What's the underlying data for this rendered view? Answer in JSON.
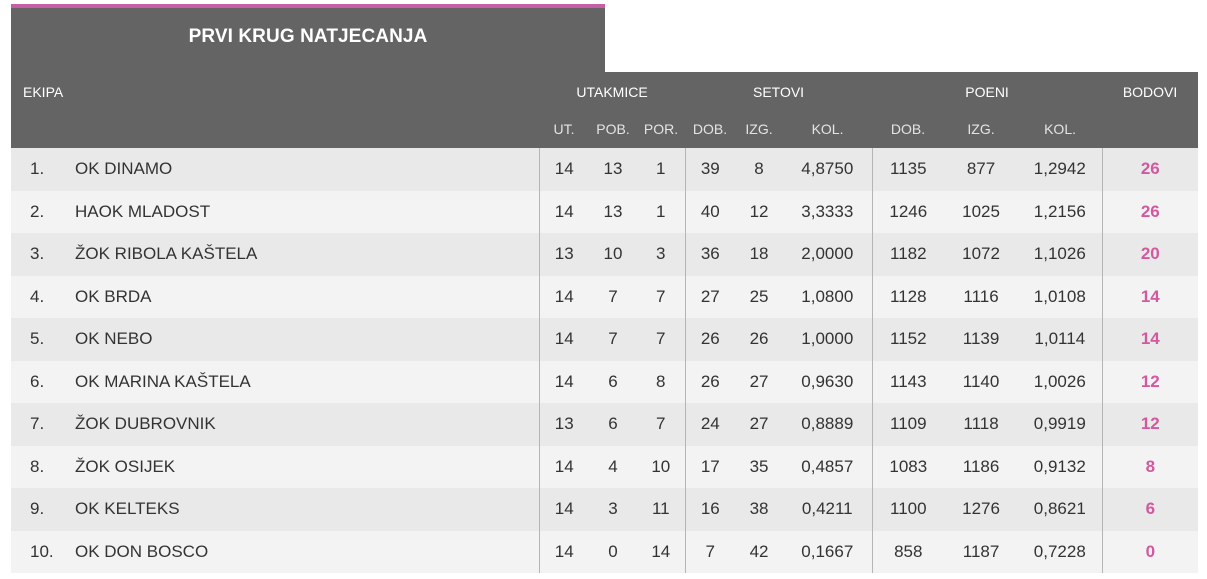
{
  "title": "PRVI KRUG NATJECANJA",
  "colors": {
    "header_bg": "#646464",
    "accent": "#c75fa6",
    "points": "#d2589f"
  },
  "header": {
    "ekipa": "EKIPA",
    "utakmice": "UTAKMICE",
    "setovi": "SETOVI",
    "poeni": "POENI",
    "bodovi": "BODOVI",
    "sub": {
      "ut": "UT.",
      "pob": "POB.",
      "por": "POR.",
      "set_dob": "DOB.",
      "set_izg": "IZG.",
      "set_kol": "KOL.",
      "poe_dob": "DOB.",
      "poe_izg": "IZG.",
      "poe_kol": "KOL."
    }
  },
  "rows": [
    {
      "rank": "1.",
      "team": "OK DINAMO",
      "ut": "14",
      "pob": "13",
      "por": "1",
      "set_dob": "39",
      "set_izg": "8",
      "set_kol": "4,8750",
      "poe_dob": "1135",
      "poe_izg": "877",
      "poe_kol": "1,2942",
      "bodovi": "26"
    },
    {
      "rank": "2.",
      "team": "HAOK MLADOST",
      "ut": "14",
      "pob": "13",
      "por": "1",
      "set_dob": "40",
      "set_izg": "12",
      "set_kol": "3,3333",
      "poe_dob": "1246",
      "poe_izg": "1025",
      "poe_kol": "1,2156",
      "bodovi": "26"
    },
    {
      "rank": "3.",
      "team": "ŽOK RIBOLA KAŠTELA",
      "ut": "13",
      "pob": "10",
      "por": "3",
      "set_dob": "36",
      "set_izg": "18",
      "set_kol": "2,0000",
      "poe_dob": "1182",
      "poe_izg": "1072",
      "poe_kol": "1,1026",
      "bodovi": "20"
    },
    {
      "rank": "4.",
      "team": "OK BRDA",
      "ut": "14",
      "pob": "7",
      "por": "7",
      "set_dob": "27",
      "set_izg": "25",
      "set_kol": "1,0800",
      "poe_dob": "1128",
      "poe_izg": "1116",
      "poe_kol": "1,0108",
      "bodovi": "14"
    },
    {
      "rank": "5.",
      "team": "OK NEBO",
      "ut": "14",
      "pob": "7",
      "por": "7",
      "set_dob": "26",
      "set_izg": "26",
      "set_kol": "1,0000",
      "poe_dob": "1152",
      "poe_izg": "1139",
      "poe_kol": "1,0114",
      "bodovi": "14"
    },
    {
      "rank": "6.",
      "team": "OK MARINA KAŠTELA",
      "ut": "14",
      "pob": "6",
      "por": "8",
      "set_dob": "26",
      "set_izg": "27",
      "set_kol": "0,9630",
      "poe_dob": "1143",
      "poe_izg": "1140",
      "poe_kol": "1,0026",
      "bodovi": "12"
    },
    {
      "rank": "7.",
      "team": "ŽOK DUBROVNIK",
      "ut": "13",
      "pob": "6",
      "por": "7",
      "set_dob": "24",
      "set_izg": "27",
      "set_kol": "0,8889",
      "poe_dob": "1109",
      "poe_izg": "1118",
      "poe_kol": "0,9919",
      "bodovi": "12"
    },
    {
      "rank": "8.",
      "team": "ŽOK OSIJEK",
      "ut": "14",
      "pob": "4",
      "por": "10",
      "set_dob": "17",
      "set_izg": "35",
      "set_kol": "0,4857",
      "poe_dob": "1083",
      "poe_izg": "1186",
      "poe_kol": "0,9132",
      "bodovi": "8"
    },
    {
      "rank": "9.",
      "team": "OK KELTEKS",
      "ut": "14",
      "pob": "3",
      "por": "11",
      "set_dob": "16",
      "set_izg": "38",
      "set_kol": "0,4211",
      "poe_dob": "1100",
      "poe_izg": "1276",
      "poe_kol": "0,8621",
      "bodovi": "6"
    },
    {
      "rank": "10.",
      "team": "OK DON BOSCO",
      "ut": "14",
      "pob": "0",
      "por": "14",
      "set_dob": "7",
      "set_izg": "42",
      "set_kol": "0,1667",
      "poe_dob": "858",
      "poe_izg": "1187",
      "poe_kol": "0,7228",
      "bodovi": "0"
    }
  ]
}
